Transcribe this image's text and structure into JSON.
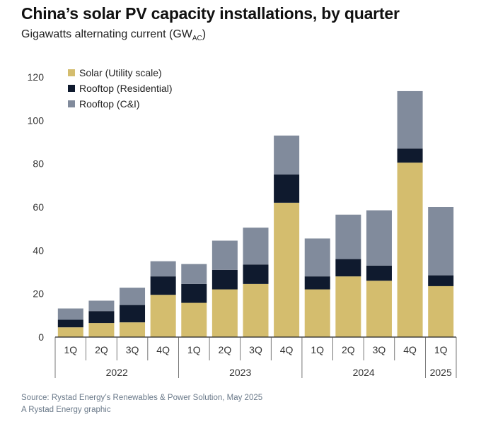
{
  "chart_data": {
    "type": "bar",
    "stacked": true,
    "title": "China’s solar PV capacity installations, by quarter",
    "subtitle": "Gigawatts alternating current (GW",
    "subtitle_sub": "AC",
    "subtitle_end": ")",
    "quarters": [
      "1Q",
      "2Q",
      "3Q",
      "4Q",
      "1Q",
      "2Q",
      "3Q",
      "4Q",
      "1Q",
      "2Q",
      "3Q",
      "4Q",
      "1Q"
    ],
    "years": [
      {
        "label": "2022",
        "count": 4
      },
      {
        "label": "2023",
        "count": 4
      },
      {
        "label": "2024",
        "count": 4
      },
      {
        "label": "2025",
        "count": 1
      }
    ],
    "series": [
      {
        "name": "Solar (Utility scale)",
        "color": "#d4bd6e",
        "values": [
          4.5,
          6.5,
          6.8,
          19.5,
          15.8,
          22,
          24.5,
          62,
          22,
          28,
          26,
          80.5,
          23.5
        ]
      },
      {
        "name": "Rooftop (Residential)",
        "color": "#0f1a2e",
        "values": [
          3.5,
          5.5,
          8,
          8.5,
          8.7,
          9,
          9,
          13,
          6,
          8,
          7,
          6.5,
          5
        ]
      },
      {
        "name": "Rooftop (C&I)",
        "color": "#818b9c",
        "values": [
          5.2,
          4.8,
          8,
          7,
          9.2,
          13.5,
          17,
          18,
          17.5,
          20.5,
          25.5,
          26.5,
          31.5
        ]
      }
    ],
    "yticks": [
      0,
      20,
      40,
      60,
      80,
      100,
      120
    ],
    "ylim": [
      0,
      120
    ],
    "grid": false,
    "legend": "top-left"
  },
  "footer": {
    "source": "Source: Rystad Energy’s Renewables & Power Solution, May 2025",
    "credit": "A Rystad Energy graphic"
  }
}
